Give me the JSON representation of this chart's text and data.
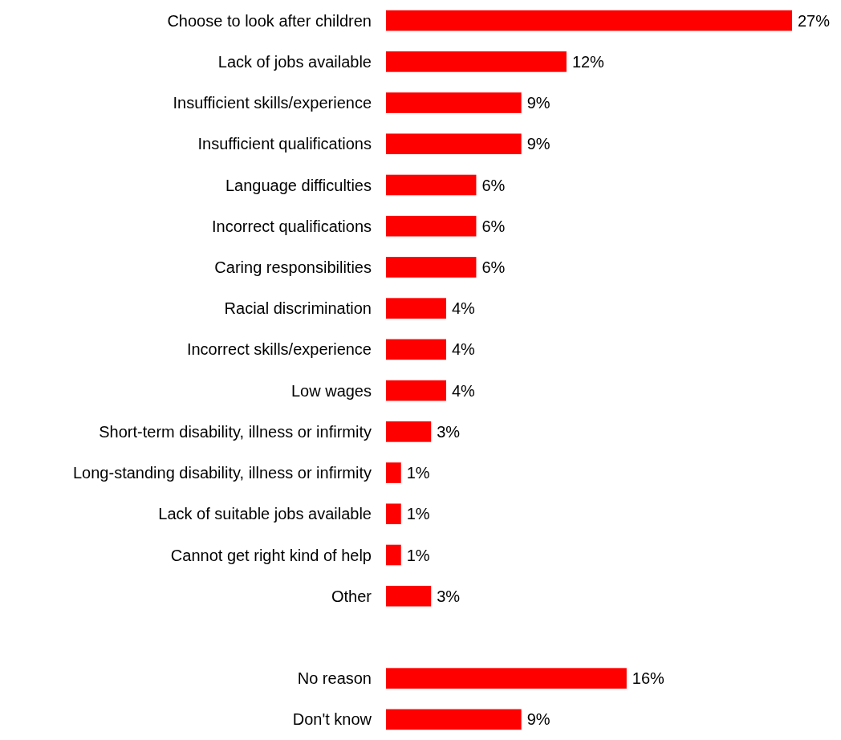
{
  "chart_data": {
    "type": "bar",
    "orientation": "horizontal",
    "tick_labels": "y",
    "categories": [
      "Choose to look after children",
      "Lack of jobs available",
      "Insufficient skills/experience",
      "Insufficient qualifications",
      "Language difficulties",
      "Incorrect qualifications",
      "Caring responsibilities",
      "Racial discrimination",
      "Incorrect skills/experience",
      "Low wages",
      "Short-term disability, illness or infirmity",
      "Long-standing disability, illness or infirmity",
      "Lack of suitable jobs available",
      "Cannot get right kind of help",
      "Other",
      null,
      "No reason",
      "Don't know"
    ],
    "values": [
      27,
      12,
      9,
      9,
      6,
      6,
      6,
      4,
      4,
      4,
      3,
      1,
      1,
      1,
      3,
      null,
      16,
      9
    ],
    "value_labels": [
      "27%",
      "12%",
      "9%",
      "9%",
      "6%",
      "6%",
      "6%",
      "4%",
      "4%",
      "4%",
      "3%",
      "1%",
      "1%",
      "1%",
      "3%",
      null,
      "16%",
      "9%"
    ],
    "color": "#ff0000"
  }
}
